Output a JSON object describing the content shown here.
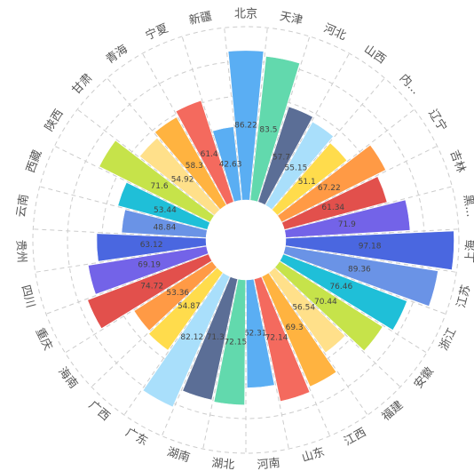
{
  "chart_data": {
    "type": "polar-bar",
    "categories": [
      "北京",
      "天津",
      "河北",
      "山西",
      "内...",
      "辽宁",
      "吉林",
      "黑...",
      "上海",
      "江苏",
      "浙江",
      "安徽",
      "福建",
      "江西",
      "山东",
      "河南",
      "湖北",
      "湖南",
      "广东",
      "广西",
      "海南",
      "重庆",
      "四川",
      "贵州",
      "云南",
      "西藏",
      "陕西",
      "甘肃",
      "青海",
      "宁夏",
      "新疆"
    ],
    "values": [
      86.22,
      83.5,
      57.7,
      55.15,
      51.1,
      67.22,
      61.34,
      71.9,
      97.18,
      89.36,
      76.46,
      70.44,
      56.54,
      69.3,
      72.14,
      62.31,
      72.15,
      71.3,
      82.12,
      54.87,
      53.36,
      74.72,
      69.19,
      63.12,
      48.84,
      53.44,
      71.6,
      54.92,
      58.3,
      61.4,
      42.63
    ],
    "colors": [
      "#5aaef3",
      "#62d9ad",
      "#5b6e96",
      "#a9dffb",
      "#ffdc4c",
      "#ff9a45",
      "#e2504c",
      "#7363e8",
      "#4a67e0",
      "#6a93e6",
      "#1fbfd8",
      "#c6e34a",
      "#ffe08a",
      "#ffb340",
      "#f46a5e"
    ],
    "ylim": [
      0,
      100
    ],
    "yticks": [
      0,
      20,
      40,
      60,
      80,
      100
    ],
    "grid": true
  }
}
